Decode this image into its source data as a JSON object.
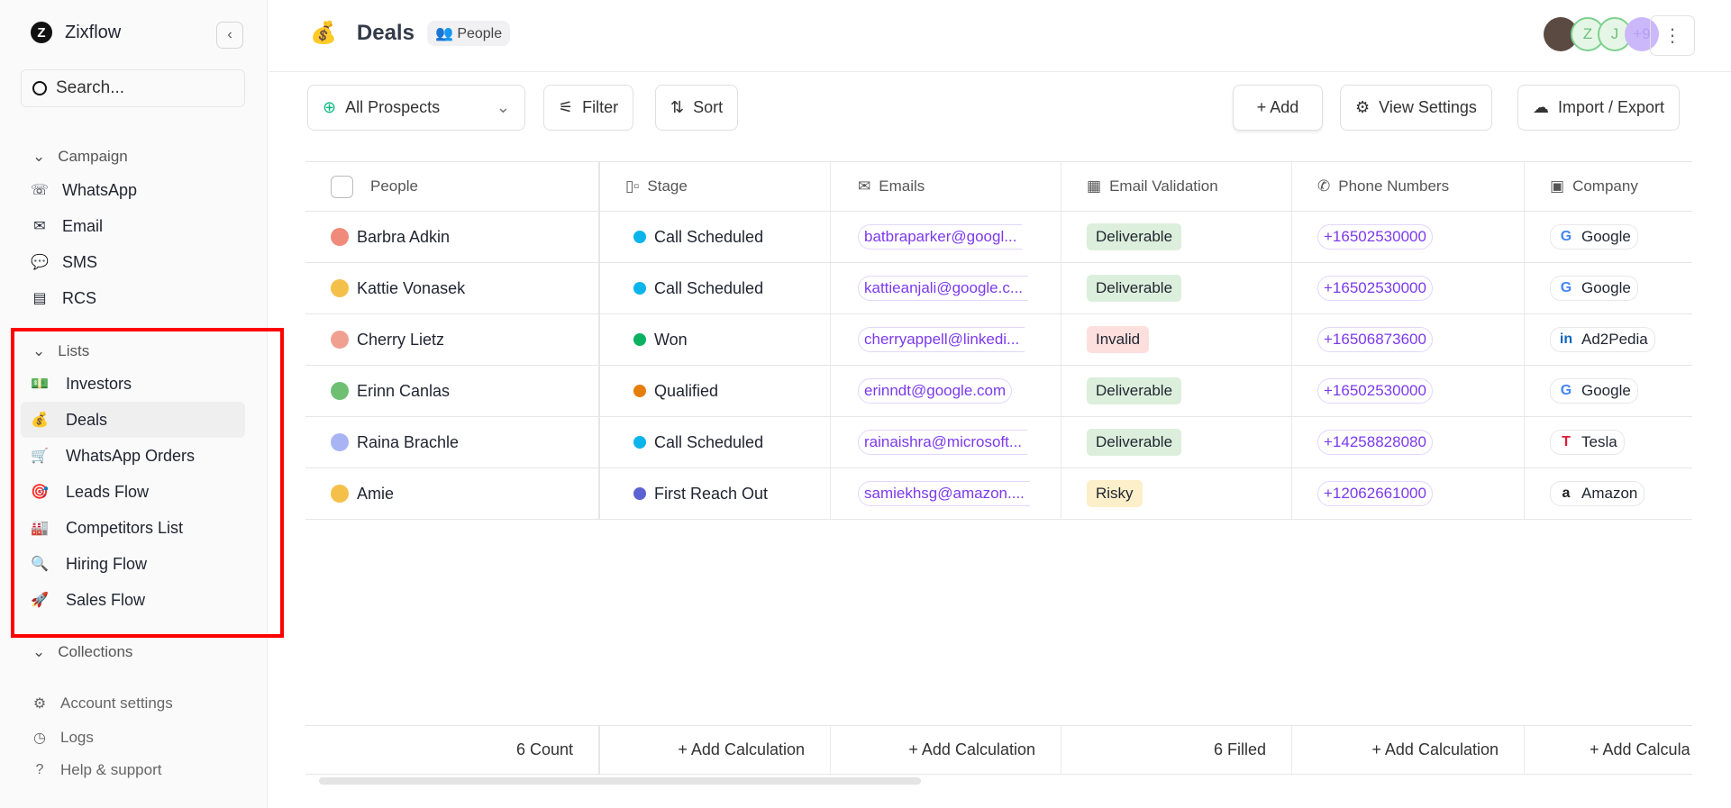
{
  "sidebar": {
    "brand": "Zixflow",
    "search_placeholder": "Search...",
    "campaign_label": "Campaign",
    "campaign_items": [
      {
        "label": "WhatsApp",
        "icon": "whatsapp-icon"
      },
      {
        "label": "Email",
        "icon": "email-icon"
      },
      {
        "label": "SMS",
        "icon": "sms-icon"
      },
      {
        "label": "RCS",
        "icon": "rcs-icon"
      }
    ],
    "lists_label": "Lists",
    "list_items": [
      {
        "label": "Investors",
        "icon": "💵"
      },
      {
        "label": "Deals",
        "icon": "💰",
        "active": true
      },
      {
        "label": "WhatsApp Orders",
        "icon": "🛒"
      },
      {
        "label": "Leads Flow",
        "icon": "🎯"
      },
      {
        "label": "Competitors List",
        "icon": "🏭"
      },
      {
        "label": "Hiring Flow",
        "icon": "🔍"
      },
      {
        "label": "Sales Flow",
        "icon": "🚀"
      }
    ],
    "collections_label": "Collections",
    "footer": [
      {
        "label": "Account settings"
      },
      {
        "label": "Logs"
      },
      {
        "label": "Help & support"
      }
    ]
  },
  "header": {
    "icon": "💰",
    "title": "Deals",
    "type_badge": "People",
    "avatars": [
      "Z",
      "J",
      "+9"
    ]
  },
  "toolbar": {
    "view": "All Prospects",
    "filter": "Filter",
    "sort": "Sort",
    "add": "+ Add",
    "view_settings": "View Settings",
    "import_export": "Import / Export"
  },
  "table": {
    "columns": [
      "People",
      "Stage",
      "Emails",
      "Email Validation",
      "Phone Numbers",
      "Company"
    ],
    "rows": [
      {
        "name": "Barbra Adkin",
        "stage": "Call Scheduled",
        "stage_color": "#0bb4ea",
        "email": "batbraparker@googl...",
        "validation": "Deliverable",
        "phone": "+16502530000",
        "company": "Google"
      },
      {
        "name": "Kattie Vonasek",
        "stage": "Call Scheduled",
        "stage_color": "#0bb4ea",
        "email": "kattieanjali@google.c...",
        "validation": "Deliverable",
        "phone": "+16502530000",
        "company": "Google"
      },
      {
        "name": "Cherry Lietz",
        "stage": "Won",
        "stage_color": "#0bb061",
        "email": "cherryappell@linkedi...",
        "validation": "Invalid",
        "phone": "+16506873600",
        "company": "Ad2Pedia"
      },
      {
        "name": "Erinn Canlas",
        "stage": "Qualified",
        "stage_color": "#e67e0a",
        "email": "erinndt@google.com",
        "validation": "Deliverable",
        "phone": "+16502530000",
        "company": "Google"
      },
      {
        "name": "Raina Brachle",
        "stage": "Call Scheduled",
        "stage_color": "#0bb4ea",
        "email": "rainaishra@microsoft...",
        "validation": "Deliverable",
        "phone": "+14258828080",
        "company": "Tesla"
      },
      {
        "name": "Amie",
        "stage": "First Reach Out",
        "stage_color": "#5b63d3",
        "email": "samiekhsg@amazon....",
        "validation": "Risky",
        "phone": "+12062661000",
        "company": "Amazon"
      }
    ],
    "footer": [
      "6  Count",
      "+ Add Calculation",
      "+ Add Calculation",
      "6 Filled",
      "+ Add Calculation",
      "+ Add Calcula"
    ]
  },
  "colors": {
    "Deliverable": "#dcefdc",
    "Invalid": "#fde0de",
    "Risky": "#fcefc9",
    "accent": "#7c3aed"
  }
}
